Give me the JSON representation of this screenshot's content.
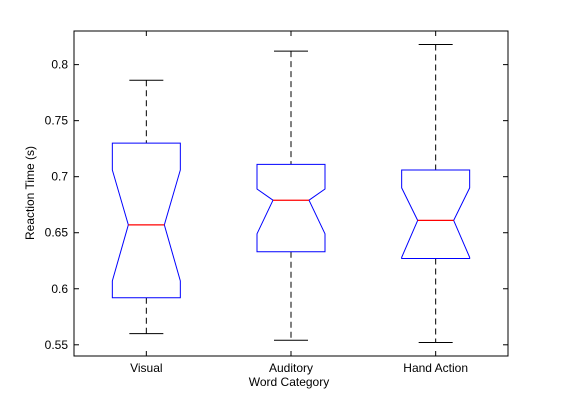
{
  "chart_data": {
    "type": "boxplot",
    "notched": true,
    "xlabel": "Word Category",
    "ylabel": "Reaction Time (s)",
    "ylim": [
      0.54,
      0.83
    ],
    "yticks": [
      0.55,
      0.6,
      0.65,
      0.7,
      0.75,
      0.8
    ],
    "categories": [
      "Visual",
      "Auditory",
      "Hand Action"
    ],
    "boxes": [
      {
        "category": "Visual",
        "whisker_low": 0.56,
        "q1": 0.592,
        "median": 0.657,
        "q3": 0.73,
        "whisker_high": 0.786,
        "notch_low": 0.607,
        "notch_high": 0.706
      },
      {
        "category": "Auditory",
        "whisker_low": 0.554,
        "q1": 0.633,
        "median": 0.679,
        "q3": 0.711,
        "whisker_high": 0.812,
        "notch_low": 0.649,
        "notch_high": 0.689
      },
      {
        "category": "Hand Action",
        "whisker_low": 0.552,
        "q1": 0.627,
        "median": 0.661,
        "q3": 0.706,
        "whisker_high": 0.818,
        "notch_low": 0.628,
        "notch_high": 0.69
      }
    ],
    "colors": {
      "box": "#0000ff",
      "median": "#ff0000",
      "whisker": "#000000",
      "axes": "#000000"
    },
    "grid": false
  }
}
